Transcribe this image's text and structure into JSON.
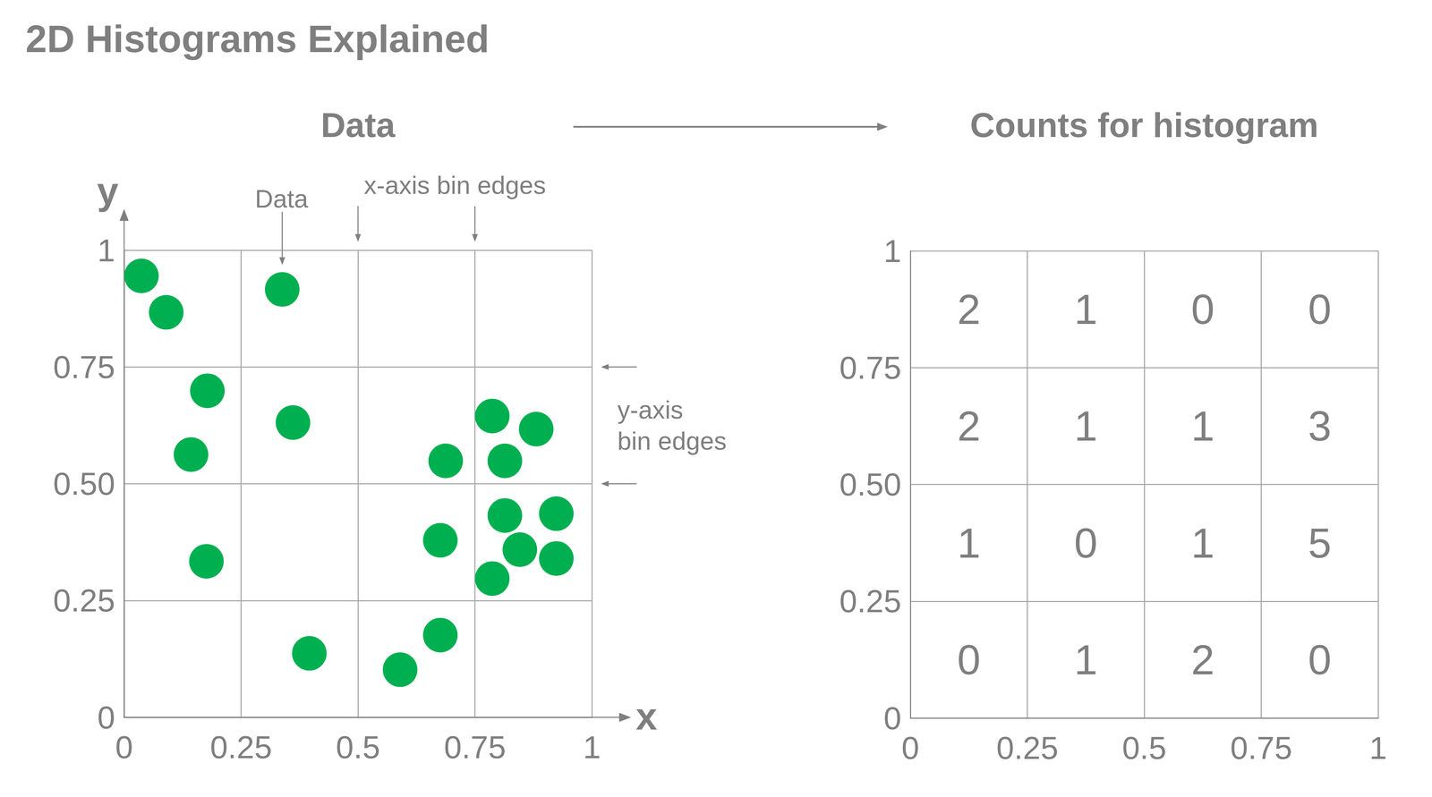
{
  "title": "2D Histograms Explained",
  "chart_data": [
    {
      "type": "scatter",
      "title": "Data",
      "x_label": "x",
      "y_label": "y",
      "x": [
        0.037,
        0.09,
        0.338,
        0.178,
        0.143,
        0.361,
        0.176,
        0.396,
        0.59,
        0.676,
        0.676,
        0.6875,
        0.787,
        0.881,
        0.814,
        0.814,
        0.924,
        0.846,
        0.924,
        0.787
      ],
      "y": [
        0.945,
        0.867,
        0.916,
        0.699,
        0.5625,
        0.631,
        0.334,
        0.137,
        0.102,
        0.176,
        0.379,
        0.549,
        0.645,
        0.617,
        0.549,
        0.432,
        0.436,
        0.359,
        0.34,
        0.297
      ],
      "color": "#00b050",
      "xlim": [
        0,
        1
      ],
      "ylim": [
        0,
        1
      ],
      "xticks": [
        0,
        0.25,
        0.5,
        0.75,
        1
      ],
      "yticks": [
        0,
        0.25,
        {
          "value": 0.5,
          "label": "0.50"
        },
        0.75,
        1
      ],
      "grid": true,
      "annotations": [
        {
          "text": "Data",
          "x": 0.338,
          "y": 0.916
        },
        {
          "text": "x-axis bin edges",
          "x": [
            0.5,
            0.75
          ]
        },
        {
          "text": "y-axis bin edges",
          "y": [
            0.75,
            0.5
          ]
        }
      ]
    },
    {
      "type": "heatmap",
      "title": "Counts for histogram",
      "x_bins": [
        0,
        0.25,
        0.5,
        0.75,
        1
      ],
      "y_bins": [
        0,
        0.25,
        0.5,
        0.75,
        1
      ],
      "counts": [
        [
          0,
          1,
          2,
          0
        ],
        [
          1,
          0,
          1,
          5
        ],
        [
          2,
          1,
          1,
          3
        ],
        [
          2,
          1,
          0,
          0
        ]
      ],
      "xlim": [
        0,
        1
      ],
      "ylim": [
        0,
        1
      ],
      "xticks": [
        0,
        0.25,
        0.5,
        0.75,
        1
      ],
      "yticks": [
        0,
        0.25,
        {
          "value": 0.5,
          "label": "0.50"
        },
        0.75,
        1
      ],
      "grid": true,
      "data_labels": true
    }
  ]
}
